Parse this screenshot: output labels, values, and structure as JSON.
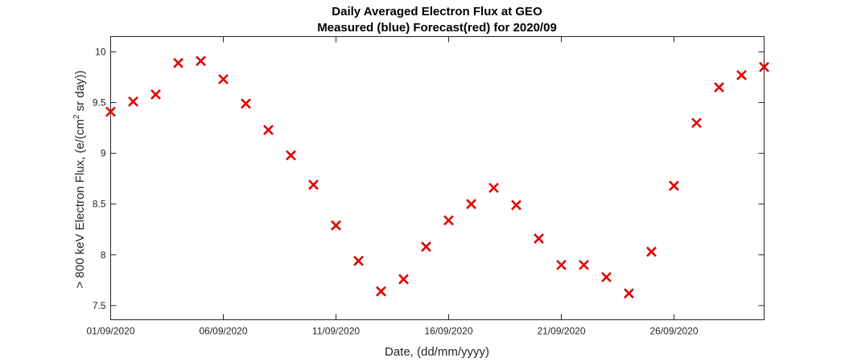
{
  "chart_data": {
    "type": "scatter",
    "title": "Daily Averaged Electron Flux at GEO",
    "subtitle": "Measured (blue) Forecast(red) for 2020/09",
    "xlabel": "Date, (dd/mm/yyyy)",
    "ylabel": "> 800 keV Electron Flux, (e/(cm",
    "ylabel_superscript": "2",
    "ylabel_suffix": " sr day))",
    "xlim": [
      "2020-09-01",
      "2020-09-30"
    ],
    "ylim": [
      7.36,
      10.15
    ],
    "x_ticks": [
      "2020-09-01",
      "2020-09-06",
      "2020-09-11",
      "2020-09-16",
      "2020-09-21",
      "2020-09-26"
    ],
    "x_tick_labels": [
      "01/09/2020",
      "06/09/2020",
      "11/09/2020",
      "16/09/2020",
      "21/09/2020",
      "26/09/2020"
    ],
    "y_ticks": [
      7.5,
      8,
      8.5,
      9,
      9.5,
      10
    ],
    "y_tick_labels": [
      "7.5",
      "8",
      "8.5",
      "9",
      "9.5",
      "10"
    ],
    "grid": false,
    "series": [
      {
        "marker": "x",
        "color": "#e00000",
        "x": [
          "2020-09-01",
          "2020-09-02",
          "2020-09-03",
          "2020-09-04",
          "2020-09-05",
          "2020-09-06",
          "2020-09-07",
          "2020-09-08",
          "2020-09-09",
          "2020-09-10",
          "2020-09-11",
          "2020-09-12",
          "2020-09-13",
          "2020-09-14",
          "2020-09-15",
          "2020-09-16",
          "2020-09-17",
          "2020-09-18",
          "2020-09-19",
          "2020-09-20",
          "2020-09-21",
          "2020-09-22",
          "2020-09-23",
          "2020-09-24",
          "2020-09-25",
          "2020-09-26",
          "2020-09-27",
          "2020-09-28",
          "2020-09-29",
          "2020-09-30"
        ],
        "y": [
          9.41,
          9.51,
          9.58,
          9.89,
          9.91,
          9.73,
          9.49,
          9.23,
          8.98,
          8.69,
          8.29,
          7.94,
          7.64,
          7.76,
          8.08,
          8.34,
          8.5,
          8.66,
          8.49,
          8.16,
          7.9,
          7.9,
          7.78,
          7.62,
          8.03,
          8.68,
          9.3,
          9.65,
          9.77,
          9.85
        ]
      }
    ]
  }
}
